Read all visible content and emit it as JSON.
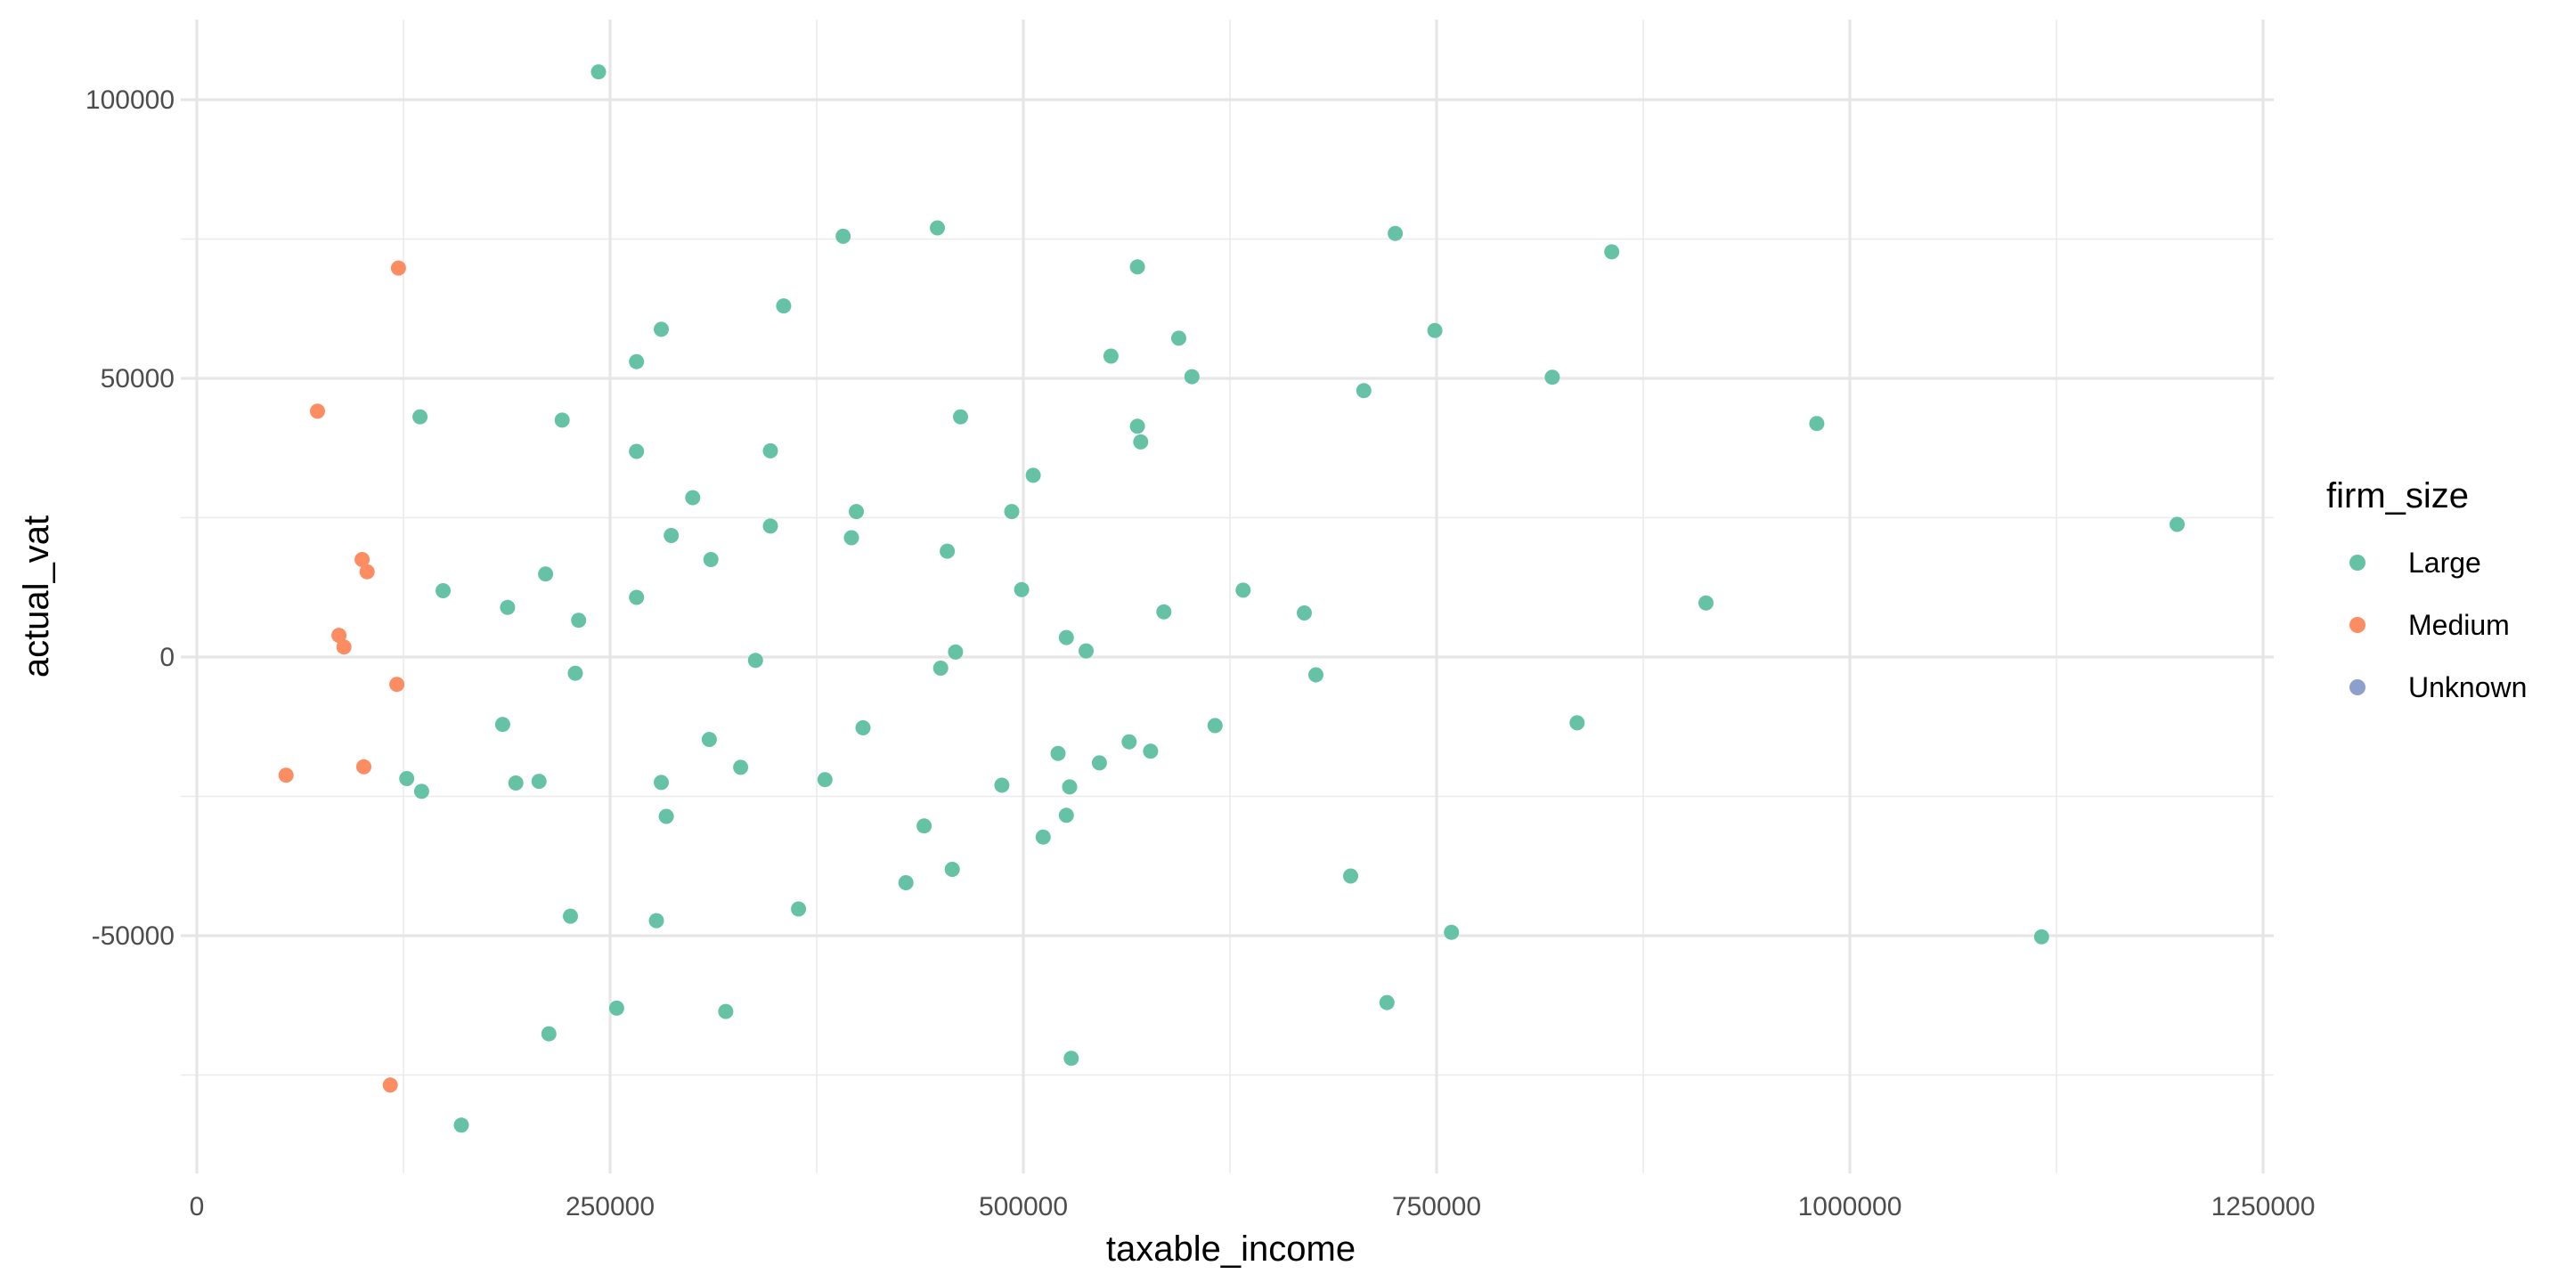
{
  "chart_data": {
    "type": "scatter",
    "title": "",
    "xlabel": "taxable_income",
    "ylabel": "actual_vat",
    "xlim": [
      0,
      1250000
    ],
    "ylim": [
      -90000,
      110000
    ],
    "x_ticks": [
      0,
      250000,
      500000,
      750000,
      1000000,
      1250000
    ],
    "x_tick_labels": [
      "0",
      "250000",
      "500000",
      "750000",
      "1000000",
      "1250000"
    ],
    "y_ticks": [
      -50000,
      0,
      50000,
      100000
    ],
    "y_tick_labels": [
      "-50000",
      "0",
      "50000",
      "100000"
    ],
    "grid": true,
    "legend": {
      "title": "firm_size",
      "placement": "right",
      "entries": [
        {
          "label": "Large",
          "color": "#66c2a5"
        },
        {
          "label": "Medium",
          "color": "#fc8d62"
        },
        {
          "label": "Unknown",
          "color": "#8da0cb"
        }
      ]
    },
    "series": [
      {
        "name": "Large",
        "color": "#66c2a5",
        "points": [
          [
            243000,
            105000
          ],
          [
            448000,
            77000
          ],
          [
            391000,
            75500
          ],
          [
            569000,
            70000
          ],
          [
            725000,
            76000
          ],
          [
            856000,
            72700
          ],
          [
            355000,
            63000
          ],
          [
            281000,
            58800
          ],
          [
            266000,
            53000
          ],
          [
            553000,
            54000
          ],
          [
            594000,
            57200
          ],
          [
            749000,
            58600
          ],
          [
            602000,
            50300
          ],
          [
            706000,
            47800
          ],
          [
            820000,
            50200
          ],
          [
            980000,
            41900
          ],
          [
            135000,
            43100
          ],
          [
            221000,
            42500
          ],
          [
            462000,
            43100
          ],
          [
            569000,
            41400
          ],
          [
            571000,
            38600
          ],
          [
            266000,
            36900
          ],
          [
            347000,
            37000
          ],
          [
            506000,
            32600
          ],
          [
            300000,
            28600
          ],
          [
            399000,
            26100
          ],
          [
            493000,
            26100
          ],
          [
            1198000,
            23800
          ],
          [
            347000,
            23500
          ],
          [
            287000,
            21800
          ],
          [
            396000,
            21400
          ],
          [
            311000,
            17500
          ],
          [
            454000,
            19000
          ],
          [
            149000,
            11900
          ],
          [
            211000,
            14900
          ],
          [
            188000,
            8900
          ],
          [
            266000,
            10700
          ],
          [
            499000,
            12100
          ],
          [
            633000,
            12000
          ],
          [
            231000,
            6600
          ],
          [
            585000,
            8100
          ],
          [
            670000,
            7900
          ],
          [
            913000,
            9700
          ],
          [
            338000,
            -600
          ],
          [
            459000,
            900
          ],
          [
            538000,
            1100
          ],
          [
            526000,
            3500
          ],
          [
            229000,
            -2900
          ],
          [
            450000,
            -2000
          ],
          [
            677000,
            -3200
          ],
          [
            185000,
            -12100
          ],
          [
            127000,
            -21800
          ],
          [
            136000,
            -24100
          ],
          [
            193000,
            -22600
          ],
          [
            207000,
            -22300
          ],
          [
            281000,
            -22500
          ],
          [
            310000,
            -14800
          ],
          [
            329000,
            -19800
          ],
          [
            380000,
            -22000
          ],
          [
            403000,
            -12700
          ],
          [
            487000,
            -23000
          ],
          [
            521000,
            -17300
          ],
          [
            528000,
            -23300
          ],
          [
            546000,
            -19000
          ],
          [
            564000,
            -15200
          ],
          [
            577000,
            -16900
          ],
          [
            616000,
            -12300
          ],
          [
            835000,
            -11800
          ],
          [
            284000,
            -28600
          ],
          [
            440000,
            -30300
          ],
          [
            512000,
            -32300
          ],
          [
            526000,
            -28400
          ],
          [
            457000,
            -38100
          ],
          [
            429000,
            -40500
          ],
          [
            698000,
            -39300
          ],
          [
            364000,
            -45200
          ],
          [
            226000,
            -46500
          ],
          [
            278000,
            -47300
          ],
          [
            759000,
            -49400
          ],
          [
            1116000,
            -50200
          ],
          [
            254000,
            -63000
          ],
          [
            320000,
            -63600
          ],
          [
            213000,
            -67600
          ],
          [
            720000,
            -62000
          ],
          [
            529000,
            -72000
          ],
          [
            160000,
            -84000
          ]
        ]
      },
      {
        "name": "Medium",
        "color": "#fc8d62",
        "points": [
          [
            122000,
            69800
          ],
          [
            73000,
            44100
          ],
          [
            100000,
            17500
          ],
          [
            103000,
            15300
          ],
          [
            86000,
            3900
          ],
          [
            89000,
            1800
          ],
          [
            121000,
            -4900
          ],
          [
            101000,
            -19700
          ],
          [
            54000,
            -21200
          ],
          [
            117000,
            -76800
          ]
        ]
      },
      {
        "name": "Unknown",
        "color": "#8da0cb",
        "points": []
      }
    ]
  }
}
